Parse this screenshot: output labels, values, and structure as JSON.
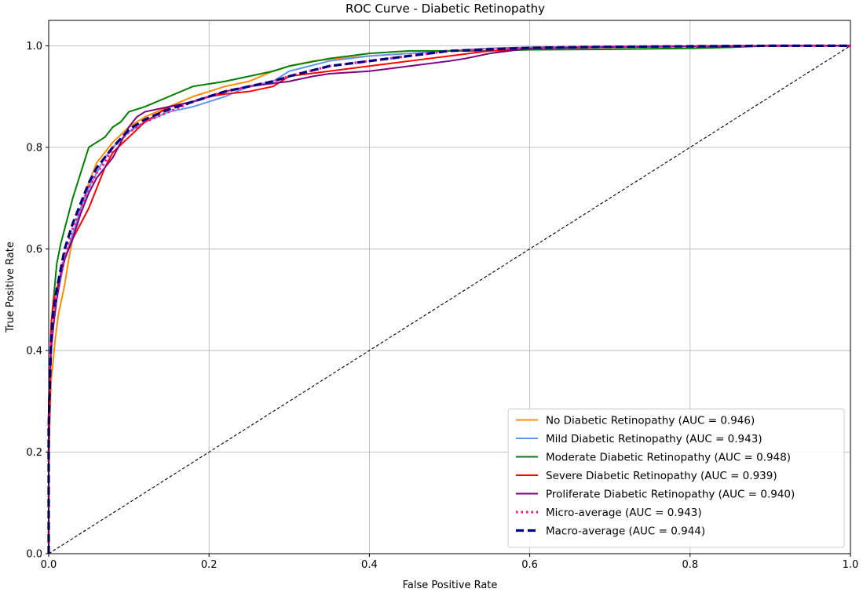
{
  "chart_data": {
    "type": "line",
    "title": "ROC Curve - Diabetic Retinopathy",
    "xlabel": "False Positive Rate",
    "ylabel": "True Positive Rate",
    "xlim": [
      0.0,
      1.0
    ],
    "ylim": [
      0.0,
      1.05
    ],
    "xticks": [
      0.0,
      0.2,
      0.4,
      0.6,
      0.8,
      1.0
    ],
    "yticks": [
      0.0,
      0.2,
      0.4,
      0.6,
      0.8,
      1.0
    ],
    "xtick_labels": [
      "0.0",
      "0.2",
      "0.4",
      "0.6",
      "0.8",
      "1.0"
    ],
    "ytick_labels": [
      "0.0",
      "0.2",
      "0.4",
      "0.6",
      "0.8",
      "1.0"
    ],
    "grid": true,
    "legend_position": "lower-right",
    "series": [
      {
        "name": "No Diabetic Retinopathy (AUC = 0.946)",
        "color": "#ff8c00",
        "style": "solid",
        "x": [
          0.0,
          0.0,
          0.003,
          0.005,
          0.008,
          0.012,
          0.016,
          0.02,
          0.025,
          0.03,
          0.04,
          0.05,
          0.06,
          0.07,
          0.08,
          0.1,
          0.12,
          0.15,
          0.18,
          0.2,
          0.22,
          0.25,
          0.28,
          0.3,
          0.33,
          0.36,
          0.4,
          0.45,
          0.5,
          0.55,
          0.6,
          0.7,
          0.8,
          0.9,
          1.0
        ],
        "y": [
          0.0,
          0.2,
          0.34,
          0.37,
          0.42,
          0.47,
          0.5,
          0.53,
          0.58,
          0.62,
          0.68,
          0.73,
          0.77,
          0.79,
          0.81,
          0.84,
          0.86,
          0.88,
          0.9,
          0.91,
          0.92,
          0.93,
          0.95,
          0.96,
          0.97,
          0.975,
          0.98,
          0.985,
          0.99,
          0.995,
          0.997,
          0.998,
          0.999,
          1.0,
          1.0
        ]
      },
      {
        "name": "Mild Diabetic Retinopathy (AUC = 0.943)",
        "color": "#6495ed",
        "style": "solid",
        "x": [
          0.0,
          0.0,
          0.003,
          0.006,
          0.01,
          0.015,
          0.02,
          0.03,
          0.04,
          0.05,
          0.06,
          0.07,
          0.08,
          0.1,
          0.12,
          0.15,
          0.18,
          0.2,
          0.22,
          0.25,
          0.28,
          0.3,
          0.35,
          0.4,
          0.45,
          0.5,
          0.55,
          0.6,
          0.7,
          0.8,
          0.9,
          1.0
        ],
        "y": [
          0.0,
          0.25,
          0.4,
          0.45,
          0.5,
          0.54,
          0.58,
          0.63,
          0.68,
          0.72,
          0.75,
          0.78,
          0.8,
          0.83,
          0.85,
          0.87,
          0.88,
          0.89,
          0.9,
          0.92,
          0.93,
          0.95,
          0.97,
          0.98,
          0.985,
          0.99,
          0.995,
          0.997,
          0.998,
          0.999,
          1.0,
          1.0
        ]
      },
      {
        "name": "Moderate Diabetic Retinopathy (AUC = 0.948)",
        "color": "#008000",
        "style": "solid",
        "x": [
          0.0,
          0.0,
          0.003,
          0.006,
          0.01,
          0.015,
          0.02,
          0.025,
          0.03,
          0.04,
          0.05,
          0.06,
          0.07,
          0.08,
          0.09,
          0.1,
          0.12,
          0.15,
          0.18,
          0.2,
          0.22,
          0.25,
          0.28,
          0.3,
          0.35,
          0.4,
          0.45,
          0.5,
          0.55,
          0.6,
          0.7,
          0.8,
          0.85,
          0.9,
          1.0
        ],
        "y": [
          0.0,
          0.2,
          0.45,
          0.5,
          0.57,
          0.61,
          0.64,
          0.67,
          0.7,
          0.75,
          0.8,
          0.81,
          0.82,
          0.84,
          0.85,
          0.87,
          0.88,
          0.9,
          0.92,
          0.925,
          0.93,
          0.94,
          0.95,
          0.96,
          0.975,
          0.985,
          0.99,
          0.99,
          0.99,
          0.992,
          0.993,
          0.995,
          0.997,
          1.0,
          1.0
        ]
      },
      {
        "name": "Severe Diabetic Retinopathy (AUC = 0.939)",
        "color": "#ff0000",
        "style": "solid",
        "x": [
          0.0,
          0.0,
          0.003,
          0.006,
          0.01,
          0.015,
          0.02,
          0.025,
          0.03,
          0.04,
          0.05,
          0.06,
          0.07,
          0.08,
          0.1,
          0.12,
          0.15,
          0.18,
          0.2,
          0.22,
          0.25,
          0.28,
          0.3,
          0.35,
          0.4,
          0.45,
          0.5,
          0.55,
          0.6,
          0.7,
          0.8,
          0.9,
          1.0
        ],
        "y": [
          0.0,
          0.15,
          0.45,
          0.5,
          0.52,
          0.55,
          0.58,
          0.6,
          0.62,
          0.65,
          0.68,
          0.72,
          0.76,
          0.79,
          0.82,
          0.85,
          0.88,
          0.89,
          0.9,
          0.905,
          0.91,
          0.92,
          0.94,
          0.95,
          0.96,
          0.97,
          0.98,
          0.99,
          0.995,
          0.997,
          0.999,
          1.0,
          1.0
        ]
      },
      {
        "name": "Proliferate Diabetic Retinopathy (AUC = 0.940)",
        "color": "#800080",
        "style": "solid",
        "x": [
          0.0,
          0.0,
          0.003,
          0.006,
          0.01,
          0.015,
          0.02,
          0.03,
          0.04,
          0.05,
          0.06,
          0.07,
          0.08,
          0.1,
          0.11,
          0.12,
          0.15,
          0.18,
          0.2,
          0.22,
          0.25,
          0.3,
          0.33,
          0.35,
          0.4,
          0.45,
          0.5,
          0.52,
          0.55,
          0.6,
          0.7,
          0.8,
          0.9,
          1.0
        ],
        "y": [
          0.0,
          0.3,
          0.4,
          0.45,
          0.5,
          0.55,
          0.58,
          0.62,
          0.67,
          0.71,
          0.74,
          0.76,
          0.78,
          0.84,
          0.86,
          0.87,
          0.88,
          0.89,
          0.9,
          0.91,
          0.92,
          0.93,
          0.94,
          0.945,
          0.95,
          0.96,
          0.97,
          0.975,
          0.985,
          0.995,
          0.998,
          0.999,
          1.0,
          1.0
        ]
      },
      {
        "name": "Micro-average (AUC = 0.943)",
        "color": "#ff1493",
        "style": "dotted",
        "x": [
          0.0,
          0.0,
          0.003,
          0.006,
          0.01,
          0.015,
          0.02,
          0.03,
          0.04,
          0.05,
          0.06,
          0.07,
          0.08,
          0.1,
          0.12,
          0.15,
          0.18,
          0.2,
          0.22,
          0.25,
          0.28,
          0.3,
          0.35,
          0.4,
          0.45,
          0.5,
          0.55,
          0.6,
          0.7,
          0.8,
          0.9,
          1.0
        ],
        "y": [
          0.0,
          0.25,
          0.42,
          0.47,
          0.51,
          0.55,
          0.59,
          0.64,
          0.68,
          0.72,
          0.75,
          0.77,
          0.8,
          0.83,
          0.85,
          0.87,
          0.89,
          0.9,
          0.91,
          0.92,
          0.93,
          0.94,
          0.96,
          0.97,
          0.98,
          0.99,
          0.993,
          0.996,
          0.998,
          0.999,
          1.0,
          1.0
        ]
      },
      {
        "name": "Macro-average (AUC = 0.944)",
        "color": "#000080",
        "style": "dashed",
        "x": [
          0.0,
          0.0,
          0.003,
          0.006,
          0.01,
          0.015,
          0.02,
          0.03,
          0.04,
          0.05,
          0.06,
          0.07,
          0.08,
          0.1,
          0.12,
          0.15,
          0.18,
          0.2,
          0.22,
          0.25,
          0.28,
          0.3,
          0.35,
          0.4,
          0.45,
          0.5,
          0.55,
          0.6,
          0.7,
          0.8,
          0.9,
          1.0
        ],
        "y": [
          0.0,
          0.25,
          0.42,
          0.48,
          0.52,
          0.56,
          0.6,
          0.65,
          0.69,
          0.73,
          0.76,
          0.78,
          0.8,
          0.835,
          0.855,
          0.875,
          0.89,
          0.9,
          0.91,
          0.92,
          0.93,
          0.94,
          0.96,
          0.97,
          0.98,
          0.99,
          0.993,
          0.996,
          0.998,
          0.999,
          1.0,
          1.0
        ]
      }
    ],
    "reference_line": {
      "x": [
        0.0,
        1.0
      ],
      "y": [
        0.0,
        1.0
      ],
      "color": "#000000",
      "style": "dashed"
    }
  }
}
